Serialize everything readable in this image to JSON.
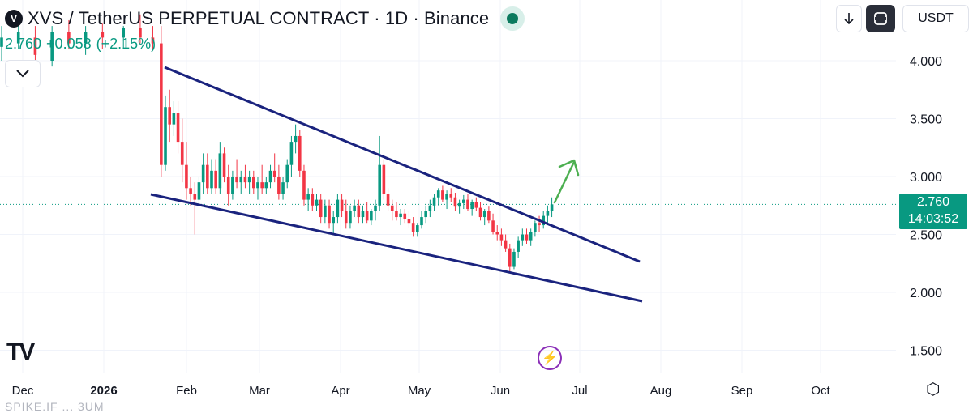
{
  "header": {
    "title": "XVS / TetherUS PERPETUAL CONTRACT · 1D · Binance",
    "last": "2.760",
    "change": "+0.058",
    "change_pct": "(+2.15%)",
    "collapse_icon": "chevron-down-icon"
  },
  "toolbar": {
    "download_icon": "arrow-down-icon",
    "fullscreen_icon": "fullscreen-icon",
    "currency": "USDT"
  },
  "price_label": {
    "price": "2.760",
    "countdown": "14:03:52"
  },
  "footer": {
    "logo": "TV",
    "faded_text": "SPIKE.IF ... 3UM"
  },
  "colors": {
    "up": "#089981",
    "down": "#f23645",
    "trendline": "#1a237e",
    "arrow": "#4caf50",
    "grid": "#f0f3fa"
  },
  "chart_data": {
    "type": "candlestick",
    "title": "XVS / TetherUS PERPETUAL CONTRACT · 1D · Binance",
    "x_ticks": [
      "Dec",
      "2026",
      "Feb",
      "Mar",
      "Apr",
      "May",
      "Jun",
      "Jul",
      "Aug",
      "Sep",
      "Oct"
    ],
    "y_ticks": [
      "4.000",
      "3.500",
      "3.000",
      "2.500",
      "2.000",
      "1.500"
    ],
    "ylim": [
      1.4,
      4.2
    ],
    "last_price": 2.76,
    "series": [
      {
        "values": [
          [
            0,
            4.12,
            4.3,
            4.0,
            4.2
          ],
          [
            4,
            4.15,
            4.35,
            4.1,
            4.25
          ],
          [
            8,
            4.2,
            4.3,
            3.9,
            4.05
          ],
          [
            12,
            4.0,
            4.3,
            3.95,
            4.25
          ],
          [
            16,
            4.25,
            4.35,
            4.1,
            4.15
          ],
          [
            20,
            4.15,
            4.3,
            4.05,
            4.25
          ],
          [
            24,
            4.25,
            4.32,
            4.1,
            4.2
          ],
          [
            29,
            4.2,
            4.3,
            4.1,
            4.28
          ],
          [
            33,
            4.28,
            4.4,
            4.15,
            4.2
          ],
          [
            36,
            4.2,
            4.3,
            4.1,
            4.15
          ],
          [
            38,
            4.15,
            4.3,
            3.0,
            3.1
          ],
          [
            39,
            3.1,
            3.7,
            3.05,
            3.6
          ],
          [
            40,
            3.6,
            3.75,
            3.3,
            3.45
          ],
          [
            41,
            3.45,
            3.65,
            3.35,
            3.55
          ],
          [
            42,
            3.55,
            3.65,
            3.2,
            3.3
          ],
          [
            43,
            3.3,
            3.5,
            2.95,
            3.1
          ],
          [
            44,
            3.1,
            3.3,
            2.8,
            2.9
          ],
          [
            45,
            2.9,
            3.0,
            2.75,
            2.85
          ],
          [
            46,
            2.85,
            2.95,
            2.5,
            2.8
          ],
          [
            47,
            2.8,
            3.0,
            2.75,
            2.95
          ],
          [
            48,
            2.95,
            3.2,
            2.85,
            3.1
          ],
          [
            49,
            3.1,
            3.2,
            2.85,
            2.9
          ],
          [
            50,
            2.9,
            3.15,
            2.85,
            3.05
          ],
          [
            51,
            3.05,
            3.15,
            2.85,
            2.9
          ],
          [
            52,
            2.9,
            3.3,
            2.85,
            3.2
          ],
          [
            53,
            3.2,
            3.25,
            2.95,
            3.0
          ],
          [
            54,
            3.0,
            3.1,
            2.75,
            2.85
          ],
          [
            55,
            2.85,
            3.05,
            2.8,
            3.0
          ],
          [
            56,
            3.0,
            3.15,
            2.9,
            2.95
          ],
          [
            57,
            2.95,
            3.05,
            2.85,
            3.0
          ],
          [
            58,
            3.0,
            3.1,
            2.9,
            2.95
          ],
          [
            59,
            2.95,
            3.05,
            2.85,
            3.0
          ],
          [
            60,
            3.0,
            3.05,
            2.85,
            2.9
          ],
          [
            61,
            2.9,
            3.0,
            2.8,
            2.95
          ],
          [
            62,
            2.95,
            3.1,
            2.85,
            2.9
          ],
          [
            63,
            2.9,
            3.0,
            2.85,
            2.95
          ],
          [
            64,
            2.95,
            3.1,
            2.9,
            3.05
          ],
          [
            65,
            3.05,
            3.2,
            2.95,
            3.0
          ],
          [
            66,
            3.0,
            3.1,
            2.8,
            2.85
          ],
          [
            67,
            2.85,
            3.0,
            2.8,
            2.95
          ],
          [
            68,
            2.95,
            3.15,
            2.9,
            3.1
          ],
          [
            69,
            3.1,
            3.35,
            3.0,
            3.3
          ],
          [
            70,
            3.3,
            3.45,
            3.2,
            3.35
          ],
          [
            71,
            3.35,
            3.4,
            3.0,
            3.05
          ],
          [
            72,
            3.05,
            3.1,
            2.75,
            2.8
          ],
          [
            73,
            2.8,
            2.9,
            2.7,
            2.85
          ],
          [
            74,
            2.85,
            2.9,
            2.7,
            2.75
          ],
          [
            75,
            2.75,
            2.85,
            2.7,
            2.8
          ],
          [
            76,
            2.8,
            2.85,
            2.6,
            2.65
          ],
          [
            77,
            2.65,
            2.8,
            2.6,
            2.75
          ],
          [
            78,
            2.75,
            2.8,
            2.55,
            2.6
          ],
          [
            79,
            2.6,
            2.7,
            2.5,
            2.65
          ],
          [
            80,
            2.65,
            2.85,
            2.6,
            2.8
          ],
          [
            81,
            2.8,
            2.85,
            2.65,
            2.7
          ],
          [
            82,
            2.7,
            2.8,
            2.55,
            2.6
          ],
          [
            83,
            2.6,
            2.75,
            2.55,
            2.7
          ],
          [
            84,
            2.7,
            2.8,
            2.65,
            2.75
          ],
          [
            85,
            2.75,
            2.8,
            2.6,
            2.65
          ],
          [
            86,
            2.65,
            2.75,
            2.6,
            2.7
          ],
          [
            87,
            2.7,
            2.78,
            2.6,
            2.62
          ],
          [
            88,
            2.62,
            2.72,
            2.58,
            2.7
          ],
          [
            89,
            2.7,
            2.8,
            2.62,
            2.75
          ],
          [
            90,
            2.75,
            3.35,
            2.7,
            3.1
          ],
          [
            91,
            3.1,
            3.15,
            2.8,
            2.85
          ],
          [
            92,
            2.85,
            2.9,
            2.7,
            2.75
          ],
          [
            93,
            2.75,
            2.8,
            2.62,
            2.7
          ],
          [
            94,
            2.7,
            2.78,
            2.62,
            2.65
          ],
          [
            95,
            2.65,
            2.72,
            2.58,
            2.68
          ],
          [
            96,
            2.68,
            2.72,
            2.6,
            2.63
          ],
          [
            97,
            2.63,
            2.7,
            2.56,
            2.6
          ],
          [
            98,
            2.6,
            2.65,
            2.48,
            2.52
          ],
          [
            99,
            2.52,
            2.6,
            2.48,
            2.58
          ],
          [
            100,
            2.58,
            2.7,
            2.55,
            2.65
          ],
          [
            101,
            2.65,
            2.75,
            2.6,
            2.7
          ],
          [
            102,
            2.7,
            2.8,
            2.65,
            2.75
          ],
          [
            103,
            2.75,
            2.85,
            2.7,
            2.82
          ],
          [
            104,
            2.82,
            2.9,
            2.75,
            2.88
          ],
          [
            105,
            2.88,
            2.92,
            2.78,
            2.8
          ],
          [
            106,
            2.8,
            2.88,
            2.72,
            2.85
          ],
          [
            107,
            2.85,
            2.9,
            2.78,
            2.82
          ],
          [
            108,
            2.82,
            2.86,
            2.7,
            2.74
          ],
          [
            109,
            2.74,
            2.8,
            2.68,
            2.77
          ],
          [
            110,
            2.77,
            2.84,
            2.72,
            2.8
          ],
          [
            111,
            2.8,
            2.85,
            2.7,
            2.72
          ],
          [
            112,
            2.72,
            2.8,
            2.66,
            2.78
          ],
          [
            113,
            2.78,
            2.82,
            2.7,
            2.73
          ],
          [
            114,
            2.73,
            2.78,
            2.62,
            2.65
          ],
          [
            115,
            2.65,
            2.72,
            2.58,
            2.7
          ],
          [
            116,
            2.7,
            2.74,
            2.6,
            2.62
          ],
          [
            117,
            2.62,
            2.68,
            2.5,
            2.52
          ],
          [
            118,
            2.52,
            2.58,
            2.45,
            2.5
          ],
          [
            119,
            2.5,
            2.55,
            2.4,
            2.45
          ],
          [
            120,
            2.45,
            2.5,
            2.35,
            2.38
          ],
          [
            121,
            2.38,
            2.42,
            2.18,
            2.22
          ],
          [
            122,
            2.22,
            2.38,
            2.2,
            2.35
          ],
          [
            123,
            2.35,
            2.48,
            2.3,
            2.45
          ],
          [
            124,
            2.45,
            2.55,
            2.4,
            2.5
          ],
          [
            125,
            2.5,
            2.55,
            2.42,
            2.45
          ],
          [
            126,
            2.45,
            2.55,
            2.4,
            2.52
          ],
          [
            127,
            2.52,
            2.62,
            2.48,
            2.6
          ],
          [
            128,
            2.6,
            2.66,
            2.52,
            2.58
          ],
          [
            129,
            2.58,
            2.7,
            2.55,
            2.66
          ],
          [
            130,
            2.66,
            2.75,
            2.6,
            2.7
          ],
          [
            131,
            2.7,
            2.82,
            2.65,
            2.76
          ]
        ]
      }
    ],
    "trendlines": [
      {
        "x1": 0.13,
        "y1": 3.95,
        "x2": 1.0,
        "y2": 2.25
      },
      {
        "x1": 0.13,
        "y1": 2.82,
        "x2": 1.0,
        "y2": 1.9
      }
    ],
    "x_axis": "date",
    "y_axis_position": "right",
    "grid": true
  }
}
